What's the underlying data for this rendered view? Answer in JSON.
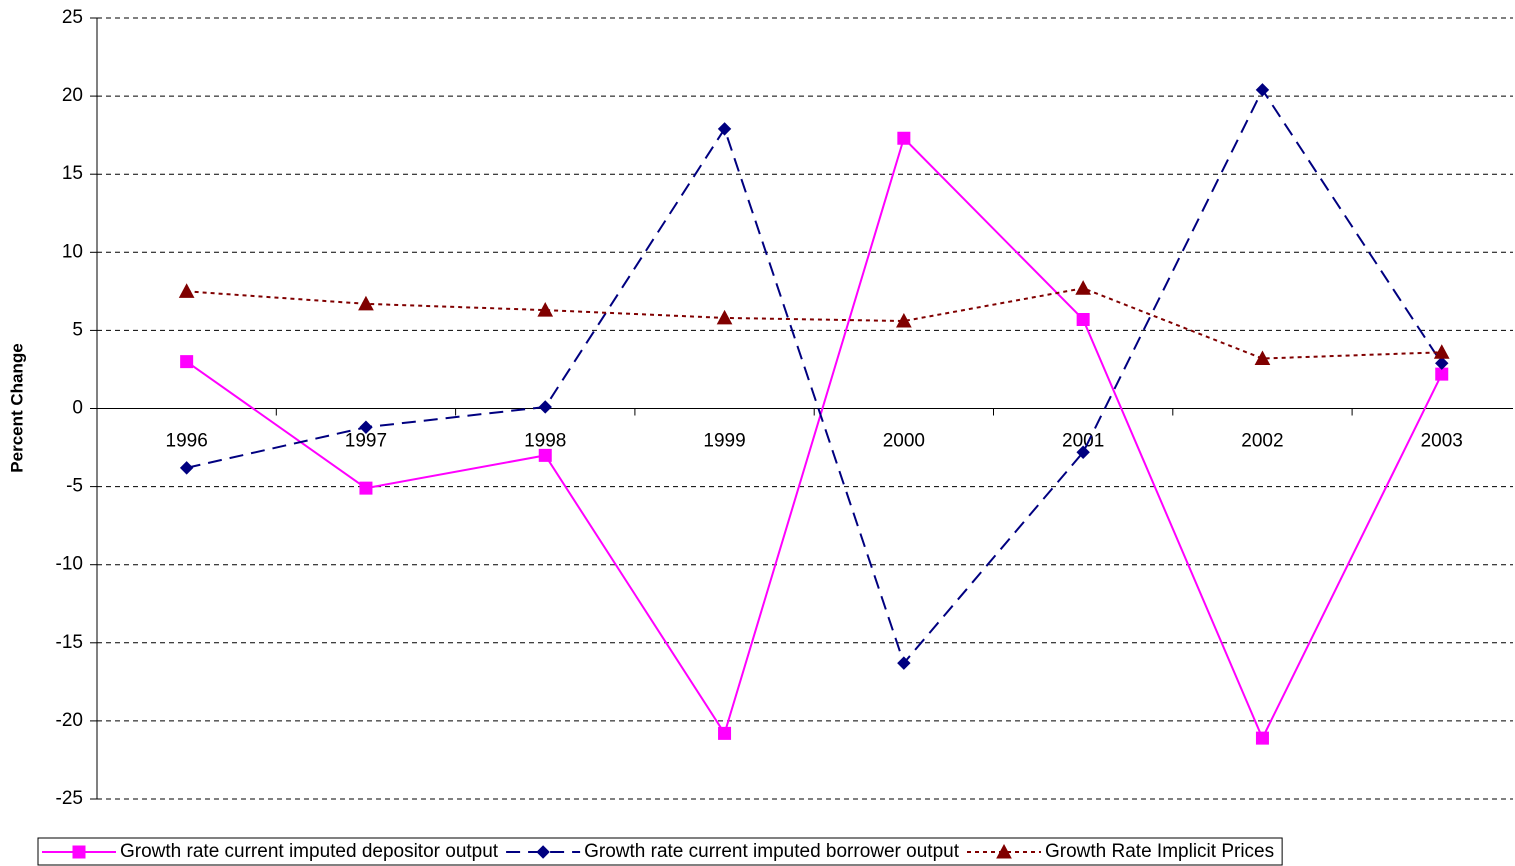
{
  "chart_data": {
    "type": "line",
    "y_label": "Percent Change",
    "categories": [
      "1996",
      "1997",
      "1998",
      "1999",
      "2000",
      "2001",
      "2002",
      "2003"
    ],
    "series": [
      {
        "name": "Growth rate current imputed depositor output",
        "color": "#ff00ff",
        "marker": "square",
        "line_style": "solid",
        "values": [
          3.0,
          -5.1,
          -3.0,
          -20.8,
          17.3,
          5.7,
          -21.1,
          2.2
        ]
      },
      {
        "name": "Growth rate current imputed borrower output",
        "color": "#000080",
        "marker": "diamond",
        "line_style": "dashed",
        "values": [
          -3.8,
          -1.2,
          0.1,
          17.9,
          -16.3,
          -2.8,
          20.4,
          2.9
        ]
      },
      {
        "name": "Growth Rate Implicit Prices",
        "color": "#800000",
        "marker": "triangle",
        "line_style": "dotted",
        "values": [
          7.5,
          6.7,
          6.3,
          5.8,
          5.6,
          7.7,
          3.2,
          3.6
        ]
      }
    ],
    "ylim": [
      -25,
      25
    ],
    "yticks": [
      -25,
      -20,
      -15,
      -10,
      -5,
      0,
      5,
      10,
      15,
      20,
      25
    ],
    "grid": true,
    "legend": "bottom"
  }
}
